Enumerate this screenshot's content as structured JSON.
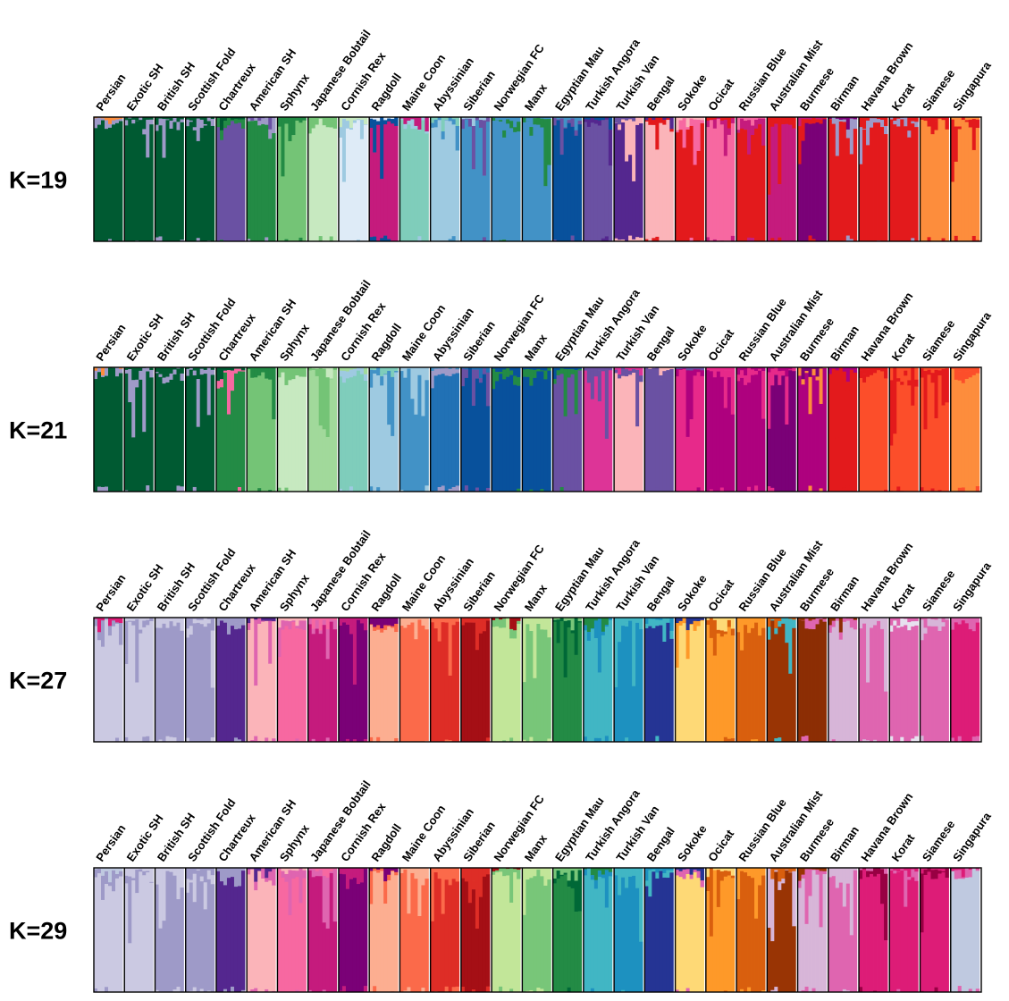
{
  "chart_data": {
    "type": "stacked-bar",
    "description_units": "ancestry proportion (0-1), one stacked bar per individual",
    "breeds": [
      "Persian",
      "Exotic SH",
      "British SH",
      "Scottish Fold",
      "Chartreux",
      "American SH",
      "Sphynx",
      "Japanese Bobtail",
      "Cornish Rex",
      "Ragdoll",
      "Maine Coon",
      "Abyssinian",
      "Siberian",
      "Norwegian FC",
      "Manx",
      "Egyptian Mau",
      "Turkish Angora",
      "Turkish Van",
      "Bengal",
      "Sokoke",
      "Ocicat",
      "Russian Blue",
      "Australian Mist",
      "Burmese",
      "Birman",
      "Havana Brown",
      "Korat",
      "Siamese",
      "Singapura"
    ],
    "ylim": [
      0,
      1
    ],
    "panels": [
      {
        "k_label": "K=19",
        "breed_colors": [
          "#005a32",
          "#005a32",
          "#005a32",
          "#005a32",
          "#6a51a3",
          "#238b45",
          "#74c476",
          "#c7e9c0",
          "#deebf7",
          "#c51b7d",
          "#7fcdbb",
          "#9ecae1",
          "#4292c6",
          "#4292c6",
          "#4292c6",
          "#08519c",
          "#6a51a3",
          "#54278f",
          "#fbb4b9",
          "#e31a1c",
          "#f768a1",
          "#e31a1c",
          "#c51b7d",
          "#7a0177",
          "#e31a1c",
          "#e31a1c",
          "#e31a1c",
          "#fd8d3c",
          "#fd8d3c"
        ],
        "secondary_colors": [
          "#9e9ac8",
          "#9e9ac8",
          "#9e9ac8",
          "#9e9ac8",
          "#238b45",
          "#9e9ac8",
          "#238b45",
          "#74c476",
          "#9ecae1",
          "#08519c",
          "#9ecae1",
          "#4292c6",
          "#6a51a3",
          "#238b45",
          "#238b45",
          "#6a51a3",
          "#54278f",
          "#fbb4b9",
          "#e31a1c",
          "#f768a1",
          "#c51b7d",
          "#c51b7d",
          "#e31a1c",
          "#e31a1c",
          "#9e9ac8",
          "#9e9ac8",
          "#9e9ac8",
          "#e31a1c",
          "#e31a1c"
        ]
      },
      {
        "k_label": "K=21",
        "breed_colors": [
          "#005a32",
          "#005a32",
          "#005a32",
          "#005a32",
          "#238b45",
          "#74c476",
          "#c7e9c0",
          "#a1d99b",
          "#7fcdbb",
          "#9ecae1",
          "#4292c6",
          "#2171b5",
          "#08519c",
          "#08519c",
          "#08519c",
          "#6a51a3",
          "#dd3497",
          "#fbb4b9",
          "#6a51a3",
          "#e7298a",
          "#ae017e",
          "#ae017e",
          "#7a0177",
          "#ae017e",
          "#e31a1c",
          "#fc4e2a",
          "#fc4e2a",
          "#fc4e2a",
          "#fd8d3c"
        ],
        "secondary_colors": [
          "#9e9ac8",
          "#9e9ac8",
          "#9e9ac8",
          "#9e9ac8",
          "#f768a1",
          "#238b45",
          "#74c476",
          "#74c476",
          "#9ecae1",
          "#4292c6",
          "#9ecae1",
          "#9e9ac8",
          "#6a51a3",
          "#238b45",
          "#238b45",
          "#238b45",
          "#6a51a3",
          "#6a51a3",
          "#6a51a3",
          "#ae017e",
          "#e7298a",
          "#e7298a",
          "#e7298a",
          "#fd8d3c",
          "#e31a1c",
          "#e31a1c",
          "#e31a1c",
          "#e31a1c",
          "#fc4e2a"
        ]
      },
      {
        "k_label": "K=27",
        "breed_colors": [
          "#cbc9e2",
          "#cbc9e2",
          "#9e9ac8",
          "#9e9ac8",
          "#54278f",
          "#fbb4b9",
          "#f768a1",
          "#c51b7d",
          "#7a0177",
          "#fcae91",
          "#fb6a4a",
          "#de2d26",
          "#a50f15",
          "#c2e699",
          "#78c679",
          "#238b45",
          "#41b6c4",
          "#1d91c0",
          "#253494",
          "#fed976",
          "#fe9929",
          "#d95f0e",
          "#993404",
          "#8c2d04",
          "#d7b5d8",
          "#df65b0",
          "#df65b0",
          "#df65b0",
          "#dd1c77"
        ],
        "secondary_colors": [
          "#9e9ac8",
          "#9e9ac8",
          "#cbc9e2",
          "#cbc9e2",
          "#9e9ac8",
          "#df65b0",
          "#df65b0",
          "#df65b0",
          "#c51b7d",
          "#fb6a4a",
          "#fcae91",
          "#fb6a4a",
          "#de2d26",
          "#78c679",
          "#c2e699",
          "#006837",
          "#1d91c0",
          "#41b6c4",
          "#41b6c4",
          "#fe9929",
          "#d95f0e",
          "#fe9929",
          "#41b6c4",
          "#df65b0",
          "#df65b0",
          "#d7b5d8",
          "#e7e1ef",
          "#d7b5d8",
          "#df65b0"
        ]
      },
      {
        "k_label": "K=29",
        "breed_colors": [
          "#cbc9e2",
          "#cbc9e2",
          "#9e9ac8",
          "#9e9ac8",
          "#54278f",
          "#fbb4b9",
          "#f768a1",
          "#c51b7d",
          "#7a0177",
          "#fcae91",
          "#fb6a4a",
          "#de2d26",
          "#a50f15",
          "#c2e699",
          "#78c679",
          "#238b45",
          "#41b6c4",
          "#1d91c0",
          "#253494",
          "#fed976",
          "#fe9929",
          "#d95f0e",
          "#993404",
          "#d7b5d8",
          "#df65b0",
          "#dd1c77",
          "#dd1c77",
          "#dd1c77",
          "#bfc9e0"
        ],
        "secondary_colors": [
          "#9e9ac8",
          "#9e9ac8",
          "#cbc9e2",
          "#cbc9e2",
          "#9e9ac8",
          "#df65b0",
          "#df65b0",
          "#df65b0",
          "#c51b7d",
          "#fb6a4a",
          "#fcae91",
          "#fb6a4a",
          "#de2d26",
          "#78c679",
          "#c2e699",
          "#006837",
          "#1d91c0",
          "#41b6c4",
          "#41b6c4",
          "#df65b0",
          "#d95f0e",
          "#fe9929",
          "#d7b5d8",
          "#df65b0",
          "#d7b5d8",
          "#980043",
          "#df65b0",
          "#980043",
          "#df65b0"
        ]
      }
    ]
  }
}
